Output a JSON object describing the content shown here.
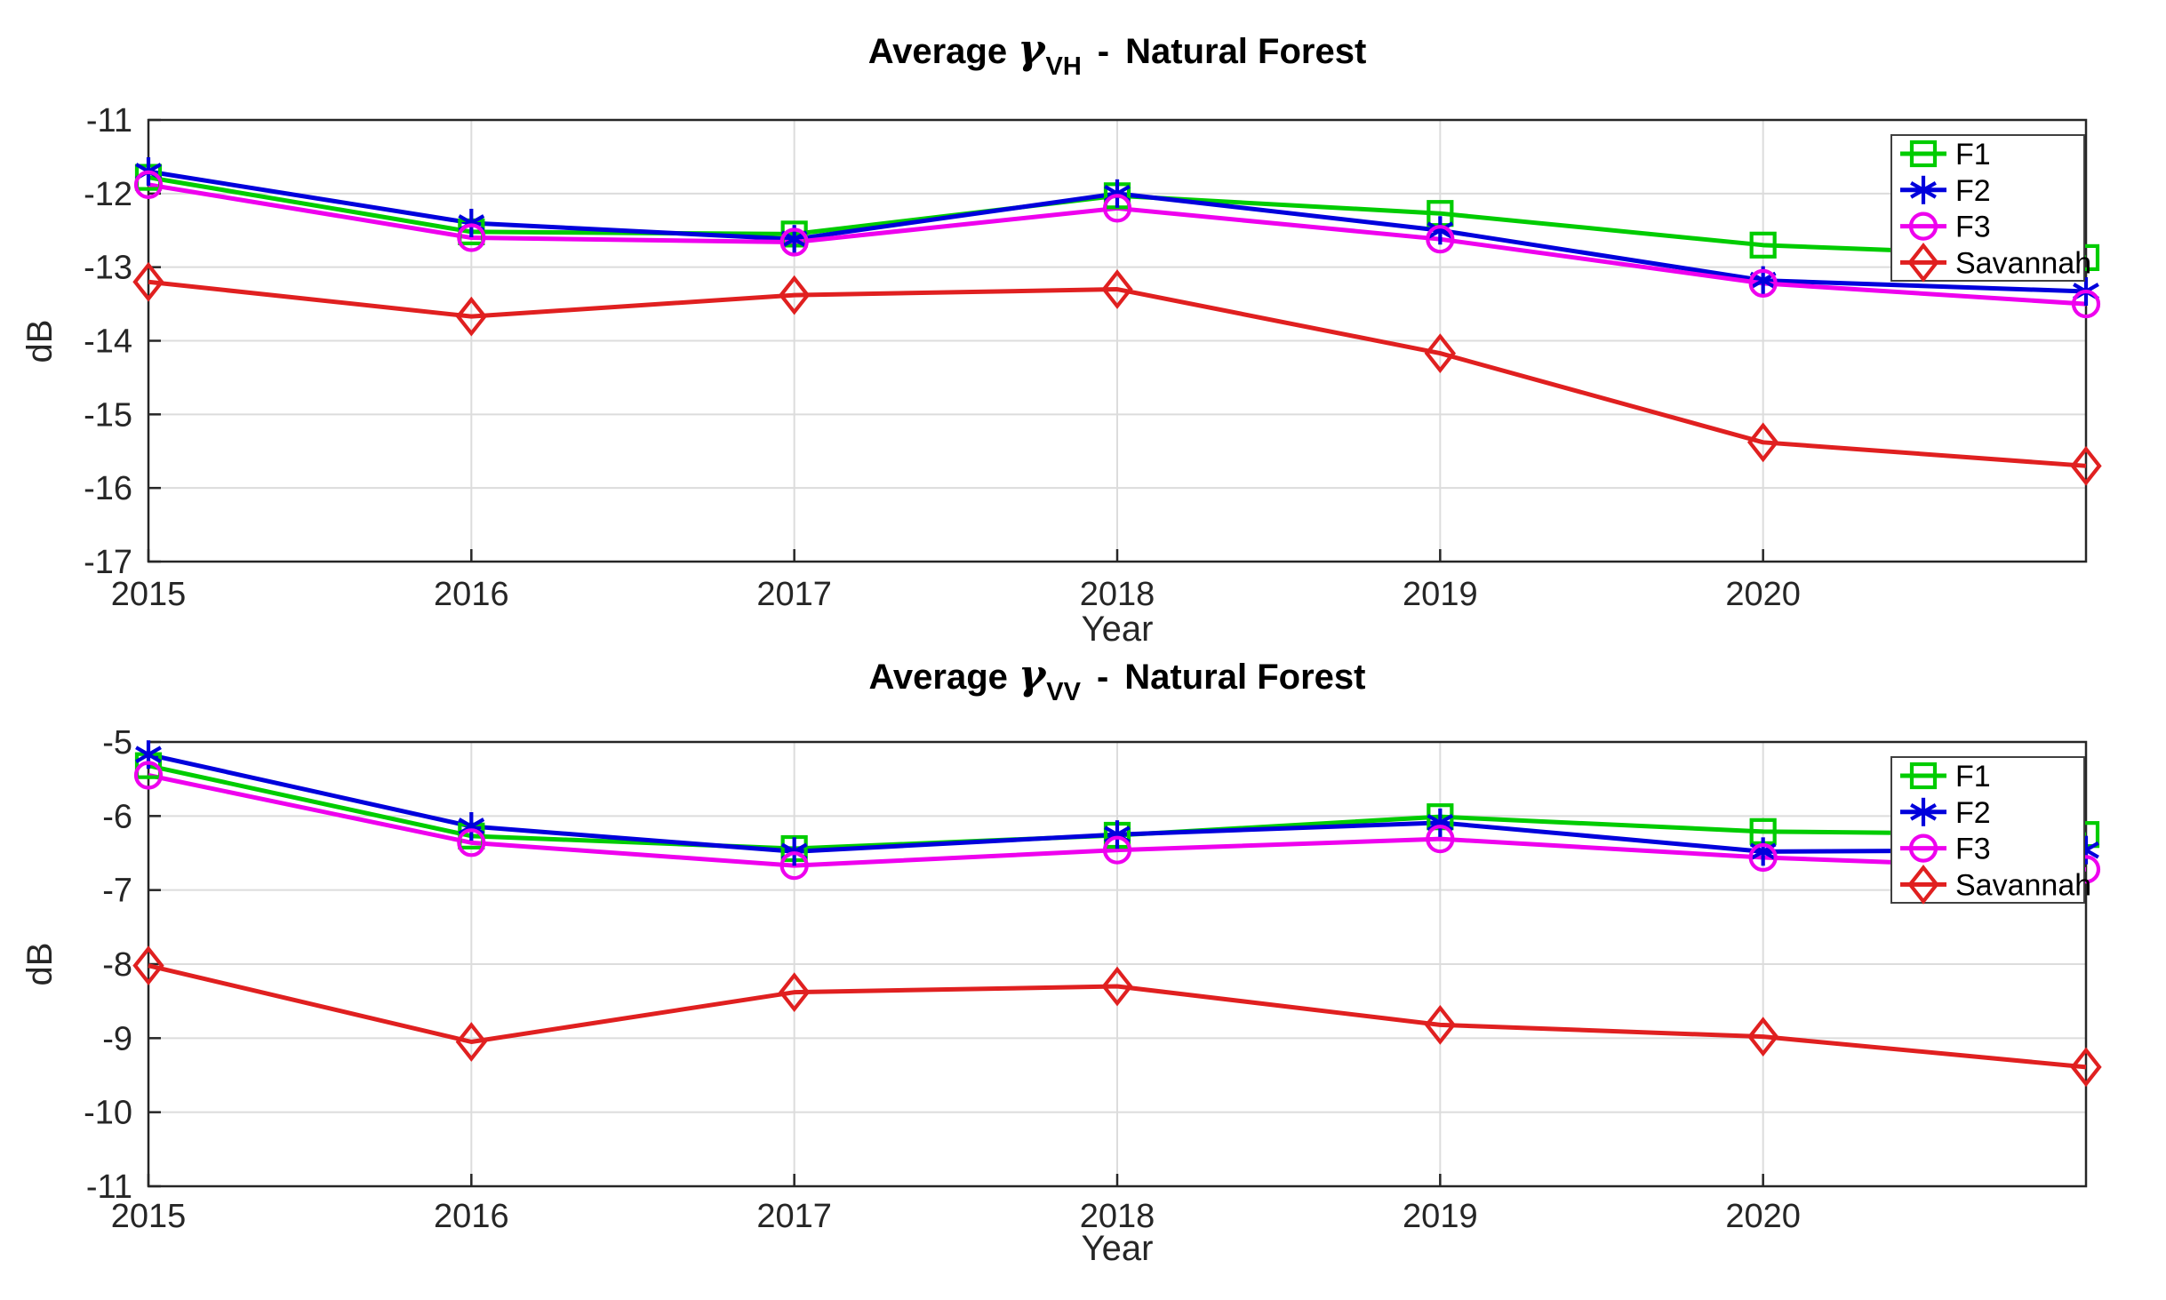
{
  "figure": {
    "background": "#ffffff",
    "axis_color": "#262626",
    "grid_color": "#dcdcdc"
  },
  "chart_data": [
    {
      "type": "line",
      "title": {
        "prefix": "Average",
        "gamma": "γ",
        "subscript": "VH",
        "separator": "-",
        "suffix": "Natural Forest"
      },
      "xlabel": "Year",
      "ylabel": "dB",
      "xlim": [
        2015,
        2021
      ],
      "ylim": [
        -17,
        -11
      ],
      "xticks": [
        2015,
        2016,
        2017,
        2018,
        2019,
        2020
      ],
      "yticks": [
        -11,
        -12,
        -13,
        -14,
        -15,
        -16,
        -17
      ],
      "grid": true,
      "legend_position": "top-right",
      "x": [
        2015,
        2016,
        2017,
        2018,
        2019,
        2020,
        2021
      ],
      "series": [
        {
          "name": "F1",
          "color": "#00cc00",
          "marker": "square",
          "values": [
            -11.78,
            -12.52,
            -12.55,
            -12.03,
            -12.27,
            -12.7,
            -12.87
          ]
        },
        {
          "name": "F2",
          "color": "#0000dc",
          "marker": "asterisk",
          "values": [
            -11.7,
            -12.4,
            -12.62,
            -12.0,
            -12.5,
            -13.18,
            -13.33
          ]
        },
        {
          "name": "F3",
          "color": "#ee00ee",
          "marker": "circle",
          "values": [
            -11.88,
            -12.6,
            -12.66,
            -12.2,
            -12.62,
            -13.22,
            -13.5
          ]
        },
        {
          "name": "Savannah",
          "color": "#e02020",
          "marker": "diamond",
          "values": [
            -13.2,
            -13.67,
            -13.38,
            -13.3,
            -14.17,
            -15.38,
            -15.7
          ]
        }
      ]
    },
    {
      "type": "line",
      "title": {
        "prefix": "Average",
        "gamma": "γ",
        "subscript": "VV",
        "separator": "-",
        "suffix": "Natural Forest"
      },
      "xlabel": "Year",
      "ylabel": "dB",
      "xlim": [
        2015,
        2021
      ],
      "ylim": [
        -11,
        -5
      ],
      "xticks": [
        2015,
        2016,
        2017,
        2018,
        2019,
        2020
      ],
      "yticks": [
        -5,
        -6,
        -7,
        -8,
        -9,
        -10,
        -11
      ],
      "grid": true,
      "legend_position": "top-right",
      "x": [
        2015,
        2016,
        2017,
        2018,
        2019,
        2020,
        2021
      ],
      "series": [
        {
          "name": "F1",
          "color": "#00cc00",
          "marker": "square",
          "values": [
            -5.32,
            -6.27,
            -6.44,
            -6.26,
            -6.01,
            -6.21,
            -6.25
          ]
        },
        {
          "name": "F2",
          "color": "#0000dc",
          "marker": "asterisk",
          "values": [
            -5.17,
            -6.14,
            -6.48,
            -6.25,
            -6.09,
            -6.48,
            -6.46
          ]
        },
        {
          "name": "F3",
          "color": "#ee00ee",
          "marker": "circle",
          "values": [
            -5.45,
            -6.36,
            -6.67,
            -6.46,
            -6.31,
            -6.56,
            -6.72
          ]
        },
        {
          "name": "Savannah",
          "color": "#e02020",
          "marker": "diamond",
          "values": [
            -8.02,
            -9.05,
            -8.38,
            -8.3,
            -8.82,
            -8.98,
            -9.39
          ]
        }
      ]
    }
  ]
}
